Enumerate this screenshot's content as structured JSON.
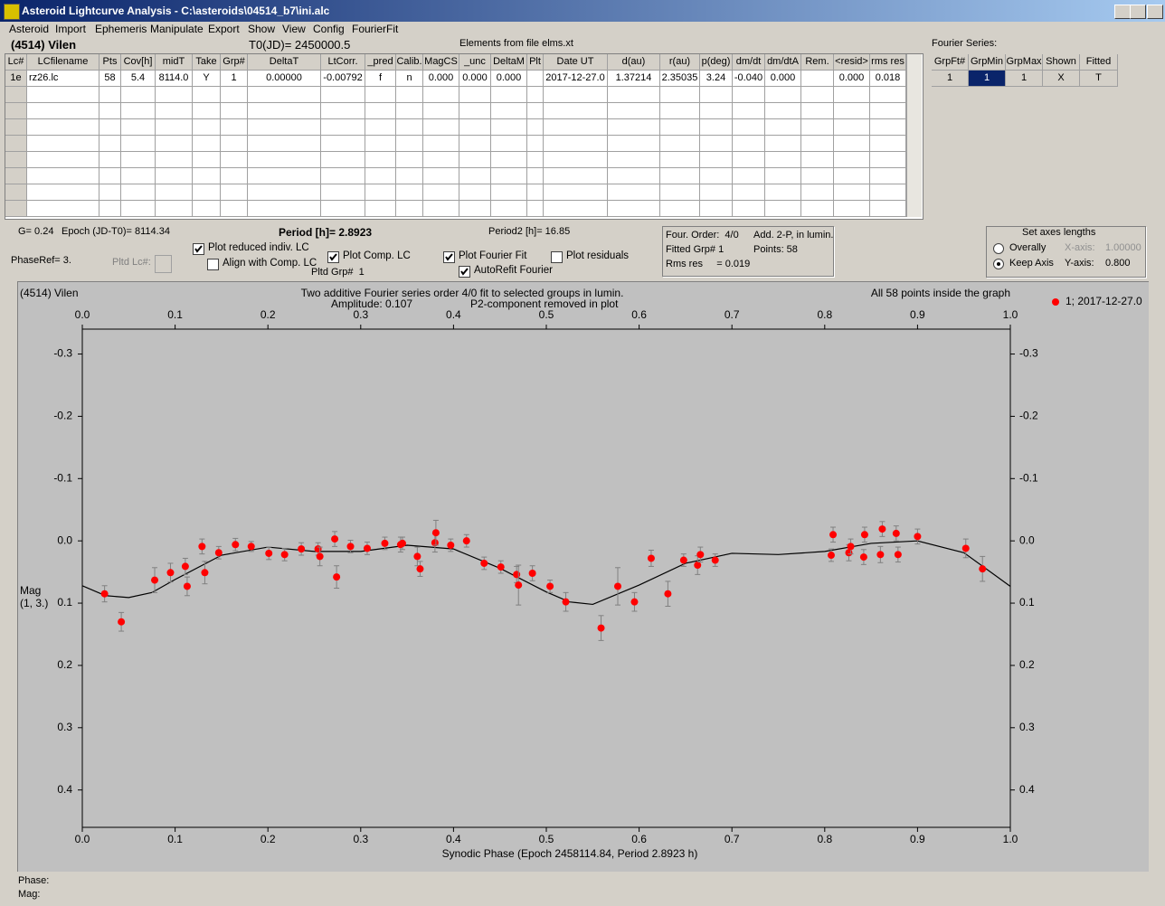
{
  "window_title": "Asteroid Lightcurve Analysis - C:\\asteroids\\04514_b7\\ini.alc",
  "menu": [
    "Asteroid",
    "Import",
    "Ephemeris",
    "Manipulate",
    "Export",
    "Show",
    "View",
    "Config",
    "FourierFit"
  ],
  "header": {
    "object": "(4514) Vilen",
    "t0": "T0(JD)= 2450000.5",
    "elements": "Elements from file elms.xt"
  },
  "lc_table": {
    "columns": [
      "Lc#",
      "LCfilename",
      "Pts",
      "Cov[h]",
      "midT",
      "Take",
      "Grp#",
      "DeltaT",
      "LtCorr.",
      "_pred",
      "Calib.",
      "MagCS",
      "_unc",
      "DeltaM",
      "Plt",
      "Date UT",
      "d(au)",
      "r(au)",
      "p(deg)",
      "dm/dt",
      "dm/dtA",
      "Rem.",
      "<resid>",
      "rms res"
    ],
    "rows": [
      [
        "1e",
        "rz26.lc",
        "58",
        "5.4",
        "8114.0",
        "Y",
        "1",
        "0.00000",
        "-0.00792",
        "f",
        "n",
        "0.000",
        "0.000",
        "0.000",
        null,
        "2017-12-27.0",
        "1.37214",
        "2.35035",
        "3.24",
        "-0.040",
        "0.000",
        null,
        "0.000",
        "0.018"
      ]
    ]
  },
  "fourier": {
    "label": "Fourier Series:",
    "columns": [
      "GrpFt#",
      "GrpMin",
      "GrpMax",
      "Shown",
      "Fitted"
    ],
    "row": [
      "1",
      "1",
      "1",
      "X",
      "T"
    ]
  },
  "info": {
    "g": "G= 0.24",
    "epoch": "Epoch (JD-T0)= 8114.34",
    "period": "Period [h]= 2.8923",
    "period2": "Period2 [h]= 16.85",
    "phase_ref": "PhaseRef= 3.",
    "pltd_lc": "Pltd Lc#:",
    "pltd_grp": "Pltd Grp#  1"
  },
  "checkboxes": [
    {
      "label": "Plot reduced indiv. LC",
      "checked": true
    },
    {
      "label": "Align with Comp. LC",
      "checked": false
    },
    {
      "label": "Plot Comp. LC",
      "checked": true
    },
    {
      "label": "Plot Fourier Fit",
      "checked": true
    },
    {
      "label": "AutoRefit Fourier",
      "checked": true
    },
    {
      "label": "Plot residuals",
      "checked": false
    }
  ],
  "fit_info": [
    "Four. Order:  4/0",
    "Add. 2-P, in lumin.",
    "Fitted Grp# 1",
    "Points: 58",
    "Rms res     = 0.019"
  ],
  "axes_box": {
    "title": "Set axes lengths",
    "options": [
      {
        "label": "Overally",
        "selected": false
      },
      {
        "label": "Keep Axis",
        "selected": true
      }
    ],
    "x_axis": "X-axis:",
    "x_value": "1.00000",
    "y_axis": "Y-axis:",
    "y_value": "0.800"
  },
  "chart_data": {
    "type": "scatter",
    "object_label": "(4514) Vilen",
    "title": "Two additive Fourier series order 4/0 fit to selected groups in lumin.",
    "subtitle_left": "Amplitude: 0.107",
    "subtitle_right": "P2-component removed in plot",
    "annotation": "All 58 points inside the graph",
    "xlabel": "Synodic Phase (Epoch 2458114.84, Period 2.8923 h)",
    "ylabel": [
      "Mag",
      "(1, 3.)"
    ],
    "xlim": [
      0,
      1
    ],
    "ylim": [
      -0.34,
      0.46
    ],
    "y_inverted": true,
    "grid": false,
    "legend_position": "top-right",
    "xticks": [
      {
        "value": 0,
        "label": "0.0"
      },
      0.1,
      0.2,
      0.3,
      0.4,
      0.5,
      0.6,
      0.7,
      0.8,
      0.9,
      {
        "value": 1,
        "label": "1.0"
      }
    ],
    "yticks": [
      -0.3,
      -0.2,
      -0.1,
      {
        "value": 0,
        "label": "0.0"
      },
      0.1,
      0.2,
      0.3,
      0.4
    ],
    "series": [
      {
        "name": "1; 2017-12-27.0",
        "color": "#ff0000",
        "x": [
          0.024,
          0.042,
          0.078,
          0.095,
          0.111,
          0.113,
          0.129,
          0.132,
          0.147,
          0.165,
          0.182,
          0.201,
          0.218,
          0.236,
          0.254,
          0.256,
          0.272,
          0.274,
          0.289,
          0.307,
          0.326,
          0.343,
          0.345,
          0.361,
          0.364,
          0.38,
          0.381,
          0.397,
          0.414,
          0.433,
          0.451,
          0.468,
          0.47,
          0.485,
          0.504,
          0.521,
          0.559,
          0.577,
          0.595,
          0.613,
          0.631,
          0.648,
          0.663,
          0.666,
          0.682,
          0.809,
          0.807,
          0.826,
          0.828,
          0.843,
          0.842,
          0.86,
          0.862,
          0.877,
          0.879,
          0.9,
          0.952,
          0.97
        ],
        "values": [
          0.085,
          0.13,
          0.063,
          0.051,
          0.041,
          0.073,
          0.009,
          0.051,
          0.019,
          0.006,
          0.009,
          0.02,
          0.022,
          0.013,
          0.013,
          0.025,
          -0.003,
          0.058,
          0.009,
          0.012,
          0.004,
          0.006,
          0.004,
          0.025,
          0.045,
          0.003,
          -0.013,
          0.007,
          0.0,
          0.036,
          0.042,
          0.054,
          0.071,
          0.052,
          0.073,
          0.098,
          0.14,
          0.073,
          0.098,
          0.028,
          0.085,
          0.031,
          0.039,
          0.022,
          0.031,
          -0.01,
          0.023,
          0.019,
          0.009,
          -0.01,
          0.026,
          0.022,
          -0.019,
          -0.012,
          0.022,
          -0.007,
          0.012,
          0.045
        ],
        "errors": [
          0.013,
          0.015,
          0.02,
          0.015,
          0.013,
          0.015,
          0.012,
          0.018,
          0.01,
          0.01,
          0.008,
          0.01,
          0.01,
          0.01,
          0.01,
          0.015,
          0.012,
          0.018,
          0.01,
          0.01,
          0.01,
          0.012,
          0.01,
          0.015,
          0.012,
          0.015,
          0.02,
          0.01,
          0.01,
          0.01,
          0.01,
          0.013,
          0.032,
          0.012,
          0.01,
          0.015,
          0.02,
          0.03,
          0.015,
          0.013,
          0.02,
          0.01,
          0.015,
          0.012,
          0.01,
          0.012,
          0.01,
          0.013,
          0.012,
          0.012,
          0.012,
          0.013,
          0.012,
          0.012,
          0.012,
          0.012,
          0.015,
          0.02
        ]
      }
    ],
    "fit": {
      "color": "#000000",
      "x": [
        0,
        0.025,
        0.05,
        0.075,
        0.1,
        0.15,
        0.2,
        0.25,
        0.3,
        0.35,
        0.4,
        0.45,
        0.5,
        0.525,
        0.55,
        0.6,
        0.65,
        0.7,
        0.75,
        0.8,
        0.85,
        0.9,
        0.95,
        1.0
      ],
      "values": [
        0.072,
        0.088,
        0.091,
        0.083,
        0.062,
        0.023,
        0.01,
        0.017,
        0.017,
        0.007,
        0.013,
        0.044,
        0.082,
        0.098,
        0.102,
        0.071,
        0.036,
        0.02,
        0.022,
        0.017,
        0.004,
        0.0,
        0.019,
        0.073
      ]
    }
  },
  "footer": {
    "phase": "Phase:",
    "mag": "Mag:"
  }
}
